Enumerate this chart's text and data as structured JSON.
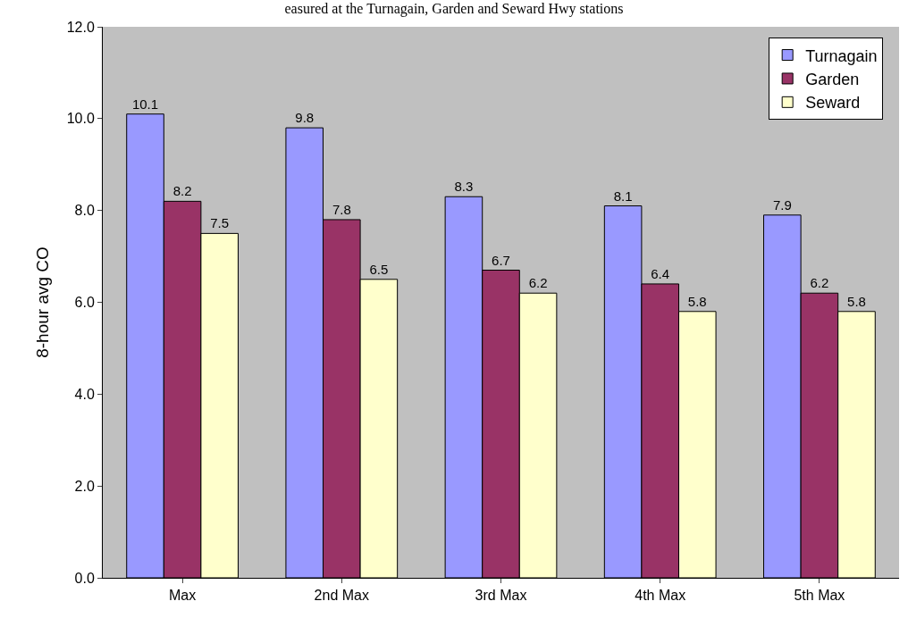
{
  "chart_data": {
    "type": "bar",
    "title": "easured at the Turnagain, Garden and Seward Hwy stations",
    "ylabel": "8-hour avg CO",
    "categories": [
      "Max",
      "2nd Max",
      "3rd Max",
      "4th Max",
      "5th Max"
    ],
    "series": [
      {
        "name": "Turnagain",
        "color": "#9999ff",
        "values": [
          10.1,
          9.8,
          8.3,
          8.1,
          7.9
        ]
      },
      {
        "name": "Garden",
        "color": "#993366",
        "values": [
          8.2,
          7.8,
          6.7,
          6.4,
          6.2
        ]
      },
      {
        "name": "Seward",
        "color": "#ffffcc",
        "values": [
          7.5,
          6.5,
          6.2,
          5.8,
          5.8
        ]
      }
    ],
    "ylim": [
      0,
      12
    ],
    "yticks": [
      {
        "value": 0,
        "label": "0.0"
      },
      {
        "value": 2,
        "label": "2.0"
      },
      {
        "value": 4,
        "label": "4.0"
      },
      {
        "value": 6,
        "label": "6.0"
      },
      {
        "value": 8,
        "label": "8.0"
      },
      {
        "value": 10,
        "label": "10.0"
      },
      {
        "value": 12,
        "label": "12.0"
      }
    ],
    "data_labels": true,
    "legend": "top right",
    "grid": false
  }
}
